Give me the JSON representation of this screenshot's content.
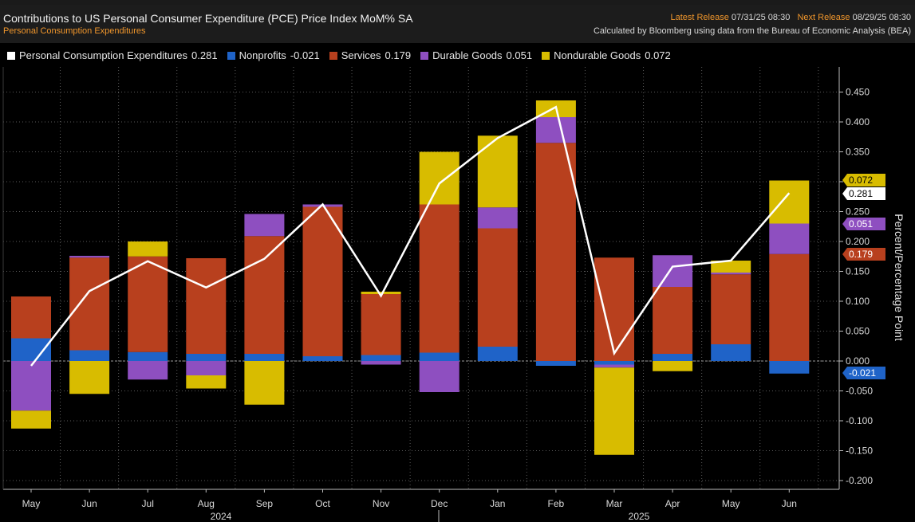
{
  "header": {
    "title": "Contributions to US Personal Consumer Expenditure (PCE) Price Index MoM% SA",
    "subtitle": "Personal Consumption Expenditures",
    "latest_release_label": "Latest Release",
    "latest_release_value": "07/31/25 08:30",
    "next_release_label": "Next Release",
    "next_release_value": "08/29/25 08:30",
    "source_note": "Calculated by Bloomberg using data from the Bureau of Economic Analysis (BEA)"
  },
  "legend": [
    {
      "name": "Personal Consumption Expenditures",
      "value": "0.281",
      "color": "#ffffff"
    },
    {
      "name": "Nonprofits",
      "value": "-0.021",
      "color": "#1f63c8"
    },
    {
      "name": "Services",
      "value": "0.179",
      "color": "#b8401e"
    },
    {
      "name": "Durable Goods",
      "value": "0.051",
      "color": "#8e4fc0"
    },
    {
      "name": "Nondurable Goods",
      "value": "0.072",
      "color": "#d8bc00"
    }
  ],
  "chart_data": {
    "type": "bar",
    "stacked": true,
    "categories": [
      "May",
      "Jun",
      "Jul",
      "Aug",
      "Sep",
      "Oct",
      "Nov",
      "Dec",
      "Jan",
      "Feb",
      "Mar",
      "Apr",
      "May",
      "Jun"
    ],
    "year_labels": [
      {
        "label": "2024",
        "after_index": 3
      },
      {
        "label": "2025",
        "after_index": 10
      }
    ],
    "ylabel": "Percent/Percentage Point",
    "ylim": [
      -0.22,
      0.49
    ],
    "yticks": [
      0.45,
      0.4,
      0.35,
      0.3,
      0.25,
      0.2,
      0.15,
      0.1,
      0.05,
      0.0,
      -0.05,
      -0.1,
      -0.15,
      -0.2
    ],
    "ytick_labels": [
      "0.450",
      "0.400",
      "0.350",
      "0.300",
      "0.250",
      "0.200",
      "0.150",
      "0.100",
      "0.050",
      "0.000",
      "-0.050",
      "-0.100",
      "-0.150",
      "-0.200"
    ],
    "grid": true,
    "axis_side": "right",
    "series": [
      {
        "name": "Nonprofits",
        "color": "#1f63c8",
        "values": [
          0.038,
          0.018,
          0.015,
          0.012,
          0.012,
          0.008,
          0.01,
          0.014,
          0.024,
          -0.008,
          -0.006,
          0.012,
          0.028,
          -0.021
        ]
      },
      {
        "name": "Services",
        "color": "#b8401e",
        "values": [
          0.07,
          0.155,
          0.16,
          0.16,
          0.197,
          0.25,
          0.102,
          0.248,
          0.198,
          0.365,
          0.173,
          0.112,
          0.117,
          0.179
        ]
      },
      {
        "name": "Durable Goods",
        "color": "#8e4fc0",
        "values": [
          -0.083,
          0.003,
          -0.031,
          -0.024,
          0.037,
          0.004,
          -0.006,
          -0.052,
          0.035,
          0.043,
          -0.005,
          0.053,
          0.003,
          0.051
        ]
      },
      {
        "name": "Nondurable Goods",
        "color": "#d8bc00",
        "values": [
          -0.03,
          -0.055,
          0.025,
          -0.022,
          -0.073,
          0.0,
          0.004,
          0.088,
          0.12,
          0.028,
          -0.146,
          -0.017,
          0.02,
          0.072
        ]
      }
    ],
    "line": {
      "name": "Personal Consumption Expenditures",
      "color": "#ffffff",
      "values": [
        -0.008,
        0.117,
        0.167,
        0.123,
        0.171,
        0.262,
        0.109,
        0.297,
        0.373,
        0.425,
        0.013,
        0.158,
        0.168,
        0.281
      ]
    },
    "last_value_labels": [
      {
        "value": "0.072",
        "bg": "#d8bc00",
        "fg": "#000000"
      },
      {
        "value": "0.281",
        "bg": "#ffffff",
        "fg": "#000000"
      },
      {
        "value": "0.051",
        "bg": "#8e4fc0",
        "fg": "#ffffff"
      },
      {
        "value": "0.179",
        "bg": "#b8401e",
        "fg": "#ffffff"
      },
      {
        "value": "-0.021",
        "bg": "#1f63c8",
        "fg": "#ffffff"
      }
    ]
  }
}
